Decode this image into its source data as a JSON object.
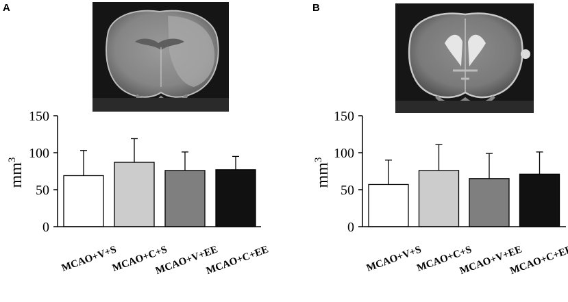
{
  "panels": [
    {
      "letter": "A"
    },
    {
      "letter": "B"
    }
  ],
  "chart_data": [
    {
      "type": "bar",
      "panel": "A",
      "categories": [
        "MCAO+V+S",
        "MCAO+C+S",
        "MCAO+V+EE",
        "MCAO+C+EE"
      ],
      "values": [
        69,
        87,
        76,
        77
      ],
      "error_upper": [
        103,
        119,
        101,
        95
      ],
      "bar_colors": [
        "#ffffff",
        "#cccccc",
        "#7f7f7f",
        "#111111"
      ],
      "ylabel": "mm",
      "ylabel_sup": "3",
      "yticks": [
        "0",
        "50",
        "100",
        "150"
      ],
      "ylim": [
        0,
        150
      ],
      "grid": false
    },
    {
      "type": "bar",
      "panel": "B",
      "categories": [
        "MCAO+V+S",
        "MCAO+C+S",
        "MCAO+V+EE",
        "MCAO+C+EE"
      ],
      "values": [
        57,
        76,
        65,
        71
      ],
      "error_upper": [
        90,
        111,
        99,
        101
      ],
      "bar_colors": [
        "#ffffff",
        "#cccccc",
        "#7f7f7f",
        "#111111"
      ],
      "ylabel": "mm",
      "ylabel_sup": "3",
      "yticks": [
        "0",
        "50",
        "100",
        "150"
      ],
      "ylim": [
        0,
        150
      ],
      "grid": false
    }
  ]
}
